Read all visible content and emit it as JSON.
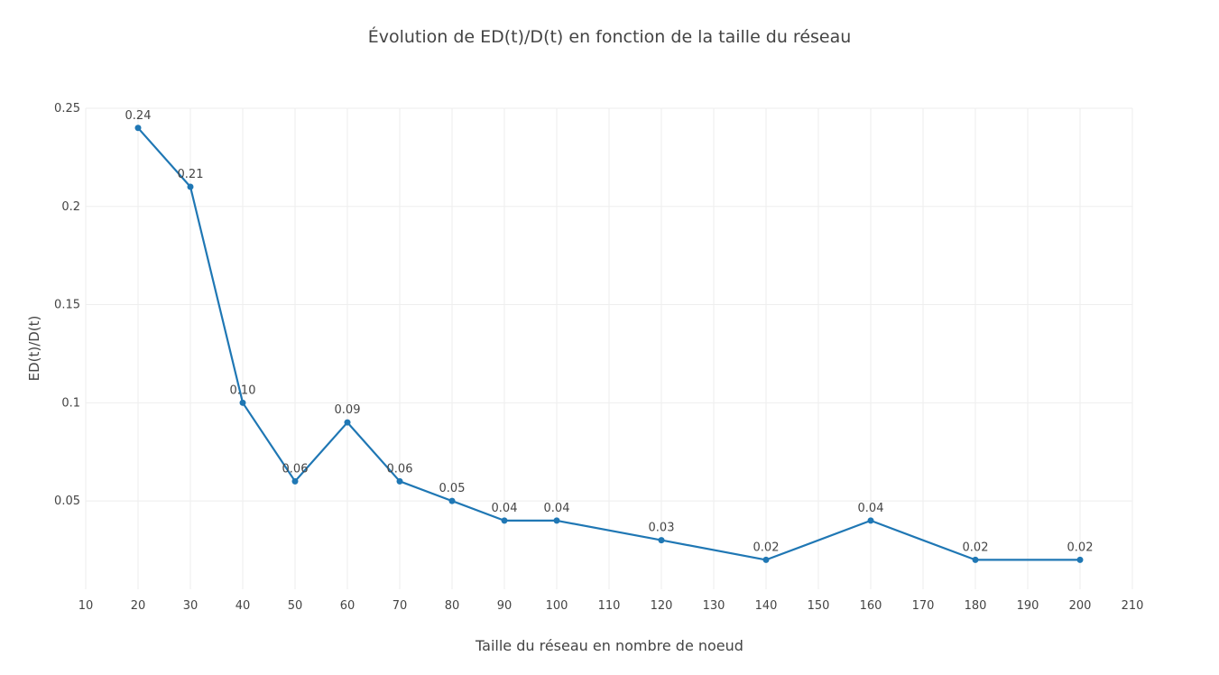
{
  "chart_data": {
    "type": "line",
    "title": "Évolution de ED(t)/D(t) en fonction de la taille du réseau",
    "xlabel": "Taille du réseau en nombre de noeud",
    "ylabel": "ED(t)/D(t)",
    "xlim": [
      10,
      210
    ],
    "ylim": [
      0.005,
      0.25
    ],
    "xticks": [
      10,
      20,
      30,
      40,
      50,
      60,
      70,
      80,
      90,
      100,
      110,
      120,
      130,
      140,
      150,
      160,
      170,
      180,
      190,
      200,
      210
    ],
    "yticks": [
      0.05,
      0.1,
      0.15,
      0.2,
      0.25
    ],
    "ytick_labels": [
      "0.05",
      "0.1",
      "0.15",
      "0.2",
      "0.25"
    ],
    "grid": true,
    "color": "#1f77b4",
    "series": [
      {
        "x": [
          20,
          30,
          40,
          50,
          60,
          70,
          80,
          90,
          100,
          120,
          140,
          160,
          180,
          200
        ],
        "values": [
          0.24,
          0.21,
          0.1,
          0.06,
          0.09,
          0.06,
          0.05,
          0.04,
          0.04,
          0.03,
          0.02,
          0.04,
          0.02,
          0.02
        ],
        "labels": [
          "0.24",
          "0.21",
          "0.10",
          "0.06",
          "0.09",
          "0.06",
          "0.05",
          "0.04",
          "0.04",
          "0.03",
          "0.02",
          "0.04",
          "0.02",
          "0.02"
        ]
      }
    ]
  }
}
